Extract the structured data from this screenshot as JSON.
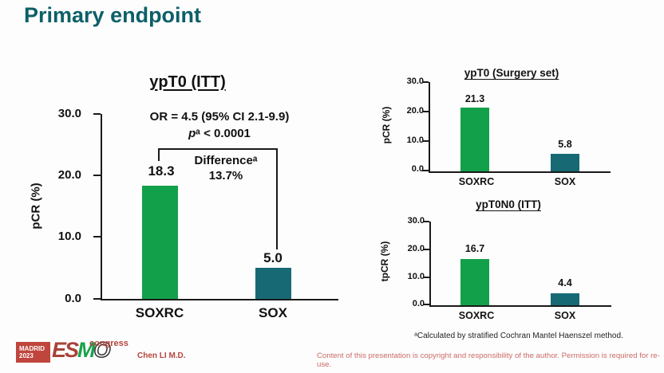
{
  "slide": {
    "title": "Primary endpoint",
    "footnote": "ᵃCalculated by stratified Cochran Mantel Haenszel method.",
    "footer": {
      "logo_city": "MADRID",
      "logo_year": "2023",
      "logo_es": "ES",
      "logo_m": "M",
      "logo_o": "O",
      "logo_congress": "congress",
      "author": "Chen LI M.D.",
      "copyright": "Content of this presentation is copyright and responsibility of the author. Permission is required for re-use."
    }
  },
  "colors": {
    "title_teal": "#0d5f68",
    "bar_green": "#13a04a",
    "bar_teal": "#176a74",
    "axis_black": "#1a1a1a",
    "footer_red": "#b5443c",
    "copyright_red": "#cb6b66"
  },
  "chart_data": [
    {
      "type": "bar",
      "title": "ypT0 (ITT)",
      "categories": [
        "SOXRC",
        "SOX"
      ],
      "values": [
        18.3,
        5.0
      ],
      "value_labels": [
        "18.3",
        "5.0"
      ],
      "ylabel": "pCR (%)",
      "xlabel": "",
      "ylim": [
        0,
        30
      ],
      "yticks": [
        "30.0",
        "20.0",
        "10.0",
        "0.0"
      ],
      "grid": false,
      "legend": "none",
      "bar_colors": [
        "#13a04a",
        "#176a74"
      ],
      "annotations": {
        "or_text": "OR = 4.5 (95% CI 2.1-9.9)",
        "p_italic": "p",
        "p_rest": "ᵃ < 0.0001",
        "difference_label": "Differenceᵃ",
        "difference_value": "13.7%"
      }
    },
    {
      "type": "bar",
      "title": "ypT0 (Surgery set)",
      "categories": [
        "SOXRC",
        "SOX"
      ],
      "values": [
        21.3,
        5.8
      ],
      "value_labels": [
        "21.3",
        "5.8"
      ],
      "ylabel": "pCR (%)",
      "xlabel": "",
      "ylim": [
        0,
        30
      ],
      "yticks": [
        "30.0",
        "20.0",
        "10.0",
        "0.0"
      ],
      "grid": false,
      "legend": "none",
      "bar_colors": [
        "#13a04a",
        "#176a74"
      ]
    },
    {
      "type": "bar",
      "title": "ypT0N0 (ITT)",
      "categories": [
        "SOXRC",
        "SOX"
      ],
      "values": [
        16.7,
        4.4
      ],
      "value_labels": [
        "16.7",
        "4.4"
      ],
      "ylabel": "tpCR (%)",
      "xlabel": "",
      "ylim": [
        0,
        30
      ],
      "yticks": [
        "30.0",
        "20.0",
        "10.0",
        "0.0"
      ],
      "grid": false,
      "legend": "none",
      "bar_colors": [
        "#13a04a",
        "#176a74"
      ]
    }
  ]
}
